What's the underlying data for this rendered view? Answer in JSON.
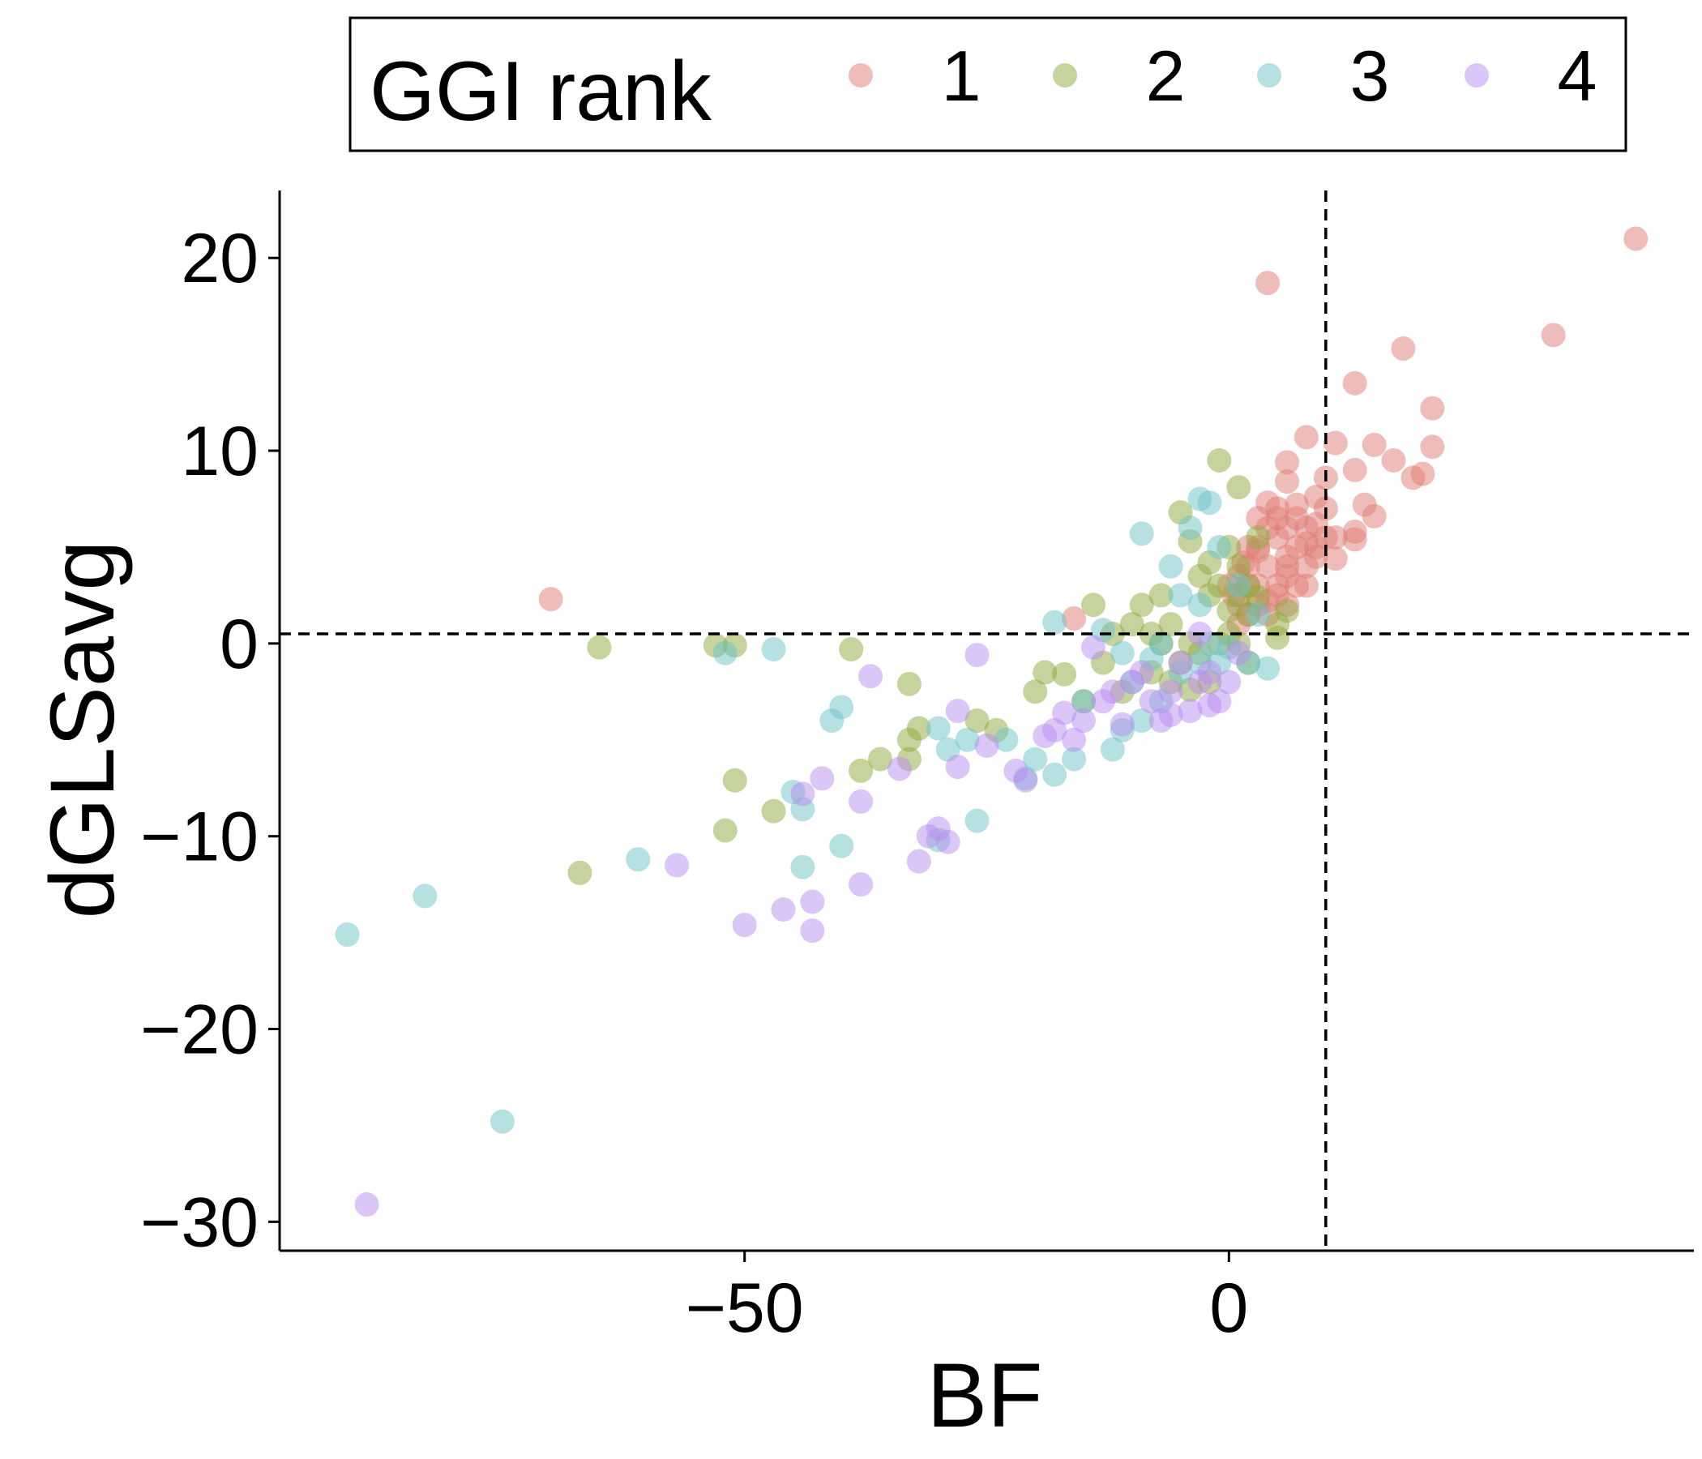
{
  "chart_data": {
    "type": "scatter",
    "title": "",
    "xlabel": "BF",
    "ylabel": "dGLSavg",
    "xlim": [
      -98,
      48
    ],
    "ylim": [
      -31.5,
      23.5
    ],
    "x_ticks": [
      {
        "value": -50,
        "label": "−50"
      },
      {
        "value": 0,
        "label": "0"
      }
    ],
    "y_ticks": [
      {
        "value": 20,
        "label": "20"
      },
      {
        "value": 10,
        "label": "10"
      },
      {
        "value": 0,
        "label": "0"
      },
      {
        "value": -10,
        "label": "−10"
      },
      {
        "value": -20,
        "label": "−20"
      },
      {
        "value": -30,
        "label": "−30"
      }
    ],
    "reference_lines": {
      "vertical_x": 10,
      "horizontal_y": 0.5
    },
    "grid": false,
    "legend": {
      "title": "GGI rank",
      "position": "top"
    },
    "series": [
      {
        "name": "1",
        "color": "#E07B73",
        "points": [
          [
            42,
            21
          ],
          [
            33.5,
            16
          ],
          [
            4,
            18.7
          ],
          [
            18,
            15.3
          ],
          [
            13,
            13.5
          ],
          [
            21,
            12.2
          ],
          [
            21,
            10.2
          ],
          [
            15,
            10.3
          ],
          [
            17,
            9.5
          ],
          [
            13,
            9
          ],
          [
            20,
            8.8
          ],
          [
            19,
            8.6
          ],
          [
            8,
            10.7
          ],
          [
            11,
            10.4
          ],
          [
            6,
            9.4
          ],
          [
            10,
            8.6
          ],
          [
            6,
            8.4
          ],
          [
            9,
            7.6
          ],
          [
            14,
            7.2
          ],
          [
            15,
            6.6
          ],
          [
            13,
            5.8
          ],
          [
            13,
            5.4
          ],
          [
            11,
            5.5
          ],
          [
            11,
            4.4
          ],
          [
            -70,
            2.3
          ],
          [
            -16,
            1.3
          ],
          [
            0,
            3
          ],
          [
            1,
            2
          ],
          [
            2,
            4
          ],
          [
            3,
            5
          ],
          [
            4,
            6
          ],
          [
            5,
            7
          ],
          [
            6,
            6
          ],
          [
            7,
            5
          ],
          [
            8,
            6
          ],
          [
            9,
            5
          ],
          [
            3,
            3
          ],
          [
            4,
            4
          ],
          [
            5,
            3
          ],
          [
            6,
            4
          ],
          [
            7,
            3
          ],
          [
            8,
            4
          ],
          [
            2,
            1.5
          ],
          [
            3,
            2
          ],
          [
            4,
            1.5
          ],
          [
            5,
            2.5
          ],
          [
            6,
            2
          ],
          [
            1,
            3.5
          ],
          [
            2,
            5
          ],
          [
            3,
            6.5
          ],
          [
            4,
            7.3
          ],
          [
            5,
            5.5
          ],
          [
            6,
            4.5
          ],
          [
            7,
            6.5
          ],
          [
            8,
            3
          ],
          [
            9,
            4.5
          ],
          [
            10,
            5.5
          ],
          [
            10,
            7
          ],
          [
            2,
            3
          ],
          [
            0.5,
            2.5
          ],
          [
            1.5,
            4.2
          ],
          [
            7,
            7.2
          ],
          [
            9,
            6.2
          ],
          [
            5,
            6.5
          ],
          [
            3,
            4.8
          ],
          [
            8,
            5.2
          ],
          [
            6,
            3.5
          ],
          [
            4,
            2.2
          ],
          [
            1,
            1
          ]
        ]
      },
      {
        "name": "2",
        "color": "#8FA83A",
        "points": [
          [
            -67,
            -11.9
          ],
          [
            -52,
            -9.7
          ],
          [
            -51,
            -7.1
          ],
          [
            -47,
            -8.7
          ],
          [
            -38,
            -6.6
          ],
          [
            -36,
            -6
          ],
          [
            -33,
            -6
          ],
          [
            -33,
            -5
          ],
          [
            -32,
            -4.4
          ],
          [
            -33,
            -2.1
          ],
          [
            -39,
            -0.3
          ],
          [
            -65,
            -0.2
          ],
          [
            -53,
            -0.1
          ],
          [
            -51,
            -0.1
          ],
          [
            -26,
            -4
          ],
          [
            -24,
            -4.5
          ],
          [
            -20,
            -2.5
          ],
          [
            -19,
            -1.5
          ],
          [
            -17,
            -1.6
          ],
          [
            -14,
            2
          ],
          [
            -5,
            6.8
          ],
          [
            -1,
            9.5
          ],
          [
            1,
            8.1
          ],
          [
            -4,
            5.3
          ],
          [
            -2,
            4.2
          ],
          [
            0,
            5
          ],
          [
            -2,
            2.5
          ],
          [
            1,
            2.5
          ],
          [
            0,
            0.5
          ],
          [
            2,
            1.5
          ],
          [
            -8,
            0.5
          ],
          [
            -6,
            1
          ],
          [
            -5,
            -1
          ],
          [
            -3,
            -0.5
          ],
          [
            -4,
            0
          ],
          [
            -6,
            -2
          ],
          [
            -4,
            -2.4
          ],
          [
            -2,
            -2
          ],
          [
            -1,
            0
          ],
          [
            1,
            0
          ],
          [
            2,
            3
          ],
          [
            3,
            2.4
          ],
          [
            5,
            1
          ],
          [
            5,
            0.3
          ],
          [
            -7,
            0
          ],
          [
            -9,
            2
          ],
          [
            -10,
            1
          ],
          [
            -12,
            0.5
          ],
          [
            -13,
            -1
          ],
          [
            -15,
            -3
          ],
          [
            -11,
            -2.5
          ],
          [
            -8,
            -1.5
          ],
          [
            0,
            1.7
          ],
          [
            1,
            4
          ],
          [
            -1,
            3
          ],
          [
            3,
            5.5
          ],
          [
            -3,
            3.5
          ],
          [
            -7,
            2.5
          ],
          [
            6,
            1.7
          ],
          [
            2,
            -1
          ]
        ]
      },
      {
        "name": "3",
        "color": "#6CC4C8",
        "points": [
          [
            -91,
            -15.1
          ],
          [
            -83,
            -13.1
          ],
          [
            -75,
            -24.8
          ],
          [
            -61,
            -11.2
          ],
          [
            -44,
            -11.6
          ],
          [
            -40,
            -10.5
          ],
          [
            -30,
            -10.2
          ],
          [
            -44,
            -8.6
          ],
          [
            -45,
            -7.7
          ],
          [
            -41,
            -4
          ],
          [
            -40,
            -3.3
          ],
          [
            -47,
            -0.3
          ],
          [
            -52,
            -0.5
          ],
          [
            -18,
            1.1
          ],
          [
            -9,
            5.7
          ],
          [
            -2,
            7.3
          ],
          [
            -3,
            7.5
          ],
          [
            -6,
            4
          ],
          [
            -4,
            6
          ],
          [
            -3,
            2
          ],
          [
            -1,
            5
          ],
          [
            -13,
            0.7
          ],
          [
            -11,
            -0.5
          ],
          [
            -8,
            -0.8
          ],
          [
            -5,
            -1.5
          ],
          [
            -7,
            -3
          ],
          [
            -11,
            -4.5
          ],
          [
            -12,
            -5.5
          ],
          [
            -16,
            -6
          ],
          [
            -18,
            -6.8
          ],
          [
            -21,
            -7
          ],
          [
            -20,
            -6
          ],
          [
            -23,
            -5
          ],
          [
            -27,
            -5
          ],
          [
            -29,
            -5.5
          ],
          [
            -26,
            -9.2
          ],
          [
            -30,
            -4.4
          ],
          [
            -15,
            -3
          ],
          [
            -9,
            -4
          ],
          [
            -3,
            -1
          ],
          [
            -1,
            -1
          ],
          [
            2,
            -1
          ],
          [
            4,
            -1.3
          ],
          [
            -2,
            0
          ],
          [
            0,
            -0.2
          ],
          [
            1,
            3
          ],
          [
            3,
            1.5
          ],
          [
            -5,
            2.5
          ],
          [
            -7,
            0
          ],
          [
            -10,
            -2
          ]
        ]
      },
      {
        "name": "4",
        "color": "#B98BEF",
        "points": [
          [
            -89,
            -29.1
          ],
          [
            -57,
            -11.5
          ],
          [
            -50,
            -14.6
          ],
          [
            -46,
            -13.8
          ],
          [
            -43,
            -13.4
          ],
          [
            -43,
            -14.9
          ],
          [
            -38,
            -12.5
          ],
          [
            -32,
            -11.3
          ],
          [
            -31,
            -10
          ],
          [
            -30,
            -9.6
          ],
          [
            -29,
            -10.3
          ],
          [
            -38,
            -8.2
          ],
          [
            -42,
            -7
          ],
          [
            -44,
            -7.8
          ],
          [
            -37,
            -1.7
          ],
          [
            -34,
            -6.5
          ],
          [
            -28,
            -6.4
          ],
          [
            -28,
            -3.5
          ],
          [
            -26,
            -0.6
          ],
          [
            -25,
            -5.3
          ],
          [
            -22,
            -6.6
          ],
          [
            -21,
            -7.1
          ],
          [
            -18,
            -4.5
          ],
          [
            -15,
            -4
          ],
          [
            -13,
            -3
          ],
          [
            -14,
            -0.2
          ],
          [
            -10,
            -2
          ],
          [
            -8,
            -3
          ],
          [
            -6,
            -2.5
          ],
          [
            -7,
            -4
          ],
          [
            -4,
            -3.5
          ],
          [
            -3,
            -2
          ],
          [
            -2,
            -1.5
          ],
          [
            -1,
            -3
          ],
          [
            0,
            -2
          ],
          [
            -5,
            -1
          ],
          [
            -9,
            -1.5
          ],
          [
            -12,
            -2.5
          ],
          [
            -11,
            -4.2
          ],
          [
            -17,
            -3.6
          ],
          [
            -19,
            -4.8
          ],
          [
            -16,
            -5
          ],
          [
            -3,
            0.5
          ],
          [
            1,
            -0.5
          ],
          [
            -2,
            -3.2
          ],
          [
            -6,
            -3.7
          ]
        ]
      }
    ]
  }
}
